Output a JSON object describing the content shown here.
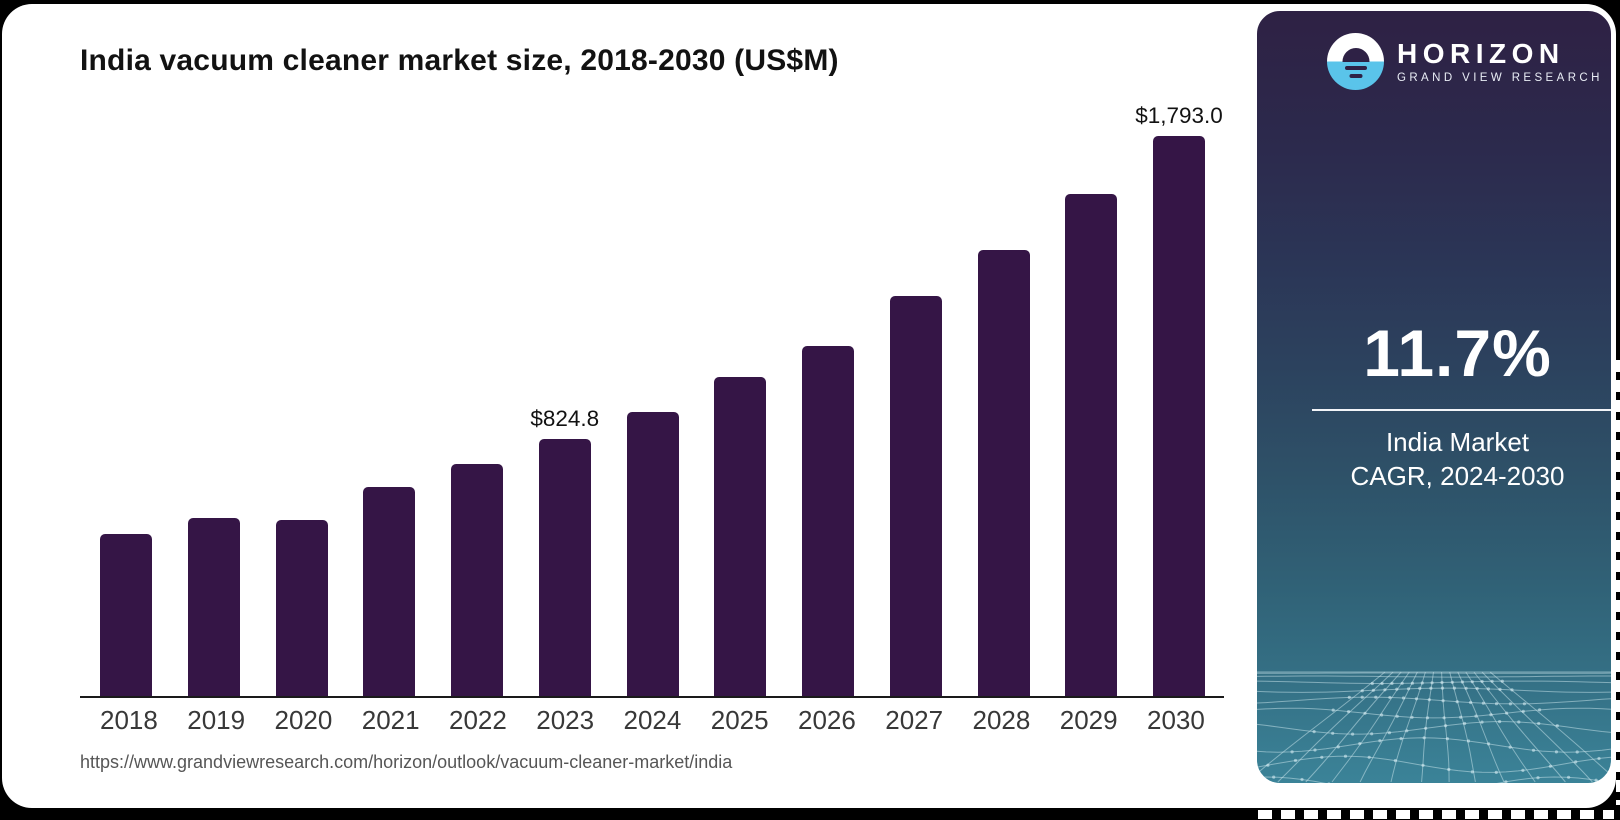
{
  "chart_data": {
    "type": "bar",
    "title": "India vacuum cleaner market size, 2018-2030 (US$M)",
    "xlabel": "",
    "ylabel": "",
    "unit": "US$M",
    "ylim": [
      0,
      1850
    ],
    "grid": false,
    "legend": false,
    "bar_color": "#351546",
    "categories": [
      "2018",
      "2019",
      "2020",
      "2021",
      "2022",
      "2023",
      "2024",
      "2025",
      "2026",
      "2027",
      "2028",
      "2029",
      "2030"
    ],
    "values": [
      520,
      572,
      566,
      671,
      745,
      824.8,
      911,
      1023,
      1122,
      1282,
      1429,
      1608,
      1793
    ],
    "annotations": [
      {
        "category": "2023",
        "label": "$824.8"
      },
      {
        "category": "2030",
        "label": "$1,793.0"
      }
    ]
  },
  "source": {
    "url": "https://www.grandviewresearch.com/horizon/outlook/vacuum-cleaner-market/india"
  },
  "panel": {
    "brand": {
      "name": "HORIZON",
      "subtitle": "GRAND VIEW RESEARCH"
    },
    "stat": {
      "value": "11.7%",
      "caption_line1": "India Market",
      "caption_line2": "CAGR, 2024-2030"
    },
    "colors": {
      "bar": "#351546",
      "panel_top": "#2e2144",
      "panel_bottom_teal": "#3b8398",
      "logo_blue": "#5ac4ea",
      "text": "#ffffff"
    }
  }
}
